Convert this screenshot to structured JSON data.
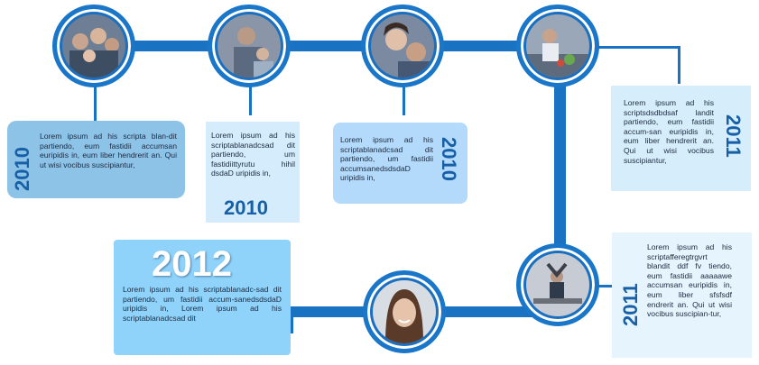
{
  "milestones": [
    {
      "photo": "family-group-photo",
      "year": "2010",
      "text": "Lorem ipsum ad his scripta blan-dit partiendo, eum fastidii accumsan euripidis in, eum liber hendrerit an. Qui ut wisi vocibus suscipiantur,"
    },
    {
      "photo": "woman-with-child-photo",
      "year": "2010",
      "text": "Lorem ipsum ad his scriptablanadcsad dit partiendo, um fastidiittyrutu hihil dsdaD uripidis in,"
    },
    {
      "photo": "smiling-couple-photo",
      "year": "2010",
      "text": "Lorem ipsum ad his scriptablanadcsad dit partiendo, um fastidii accumsanedsdsdaD uripidis in,"
    },
    {
      "photo": "kitchen-cooking-photo",
      "year": "2011",
      "text": "Lorem ipsum ad his scriptsdsdbdsaf landit partiendo, eum fastidii accum-san euripidis in, eum liber hendrerit an. Qui ut wisi vocibus suscipiantur,"
    },
    {
      "photo": "office-stretch-photo",
      "year": "2011",
      "text": "Lorem ipsum ad his scriptafferegtrgvrt blandit ddf fv tiendo, eum fastidii aaaaawe accumsan euripidis in, eum liber sfsfsdf endrerit an. Qui ut wisi vocibus suscipian-tur,"
    },
    {
      "photo": "smiling-woman-portrait-photo",
      "year": "2012",
      "text": "Lorem ipsum ad his scriptablanadc-sad dit partiendo, um fastidii accum-sanedsdsdaD uripidis in, Lorem ipsum ad his scriptablanadcsad dit"
    }
  ],
  "colors": {
    "track": "#1a73c2",
    "card_1": "#8ec3e8",
    "card_2": "#d4ecfb",
    "card_3": "#b3dafb",
    "card_4": "#d6edfc",
    "card_5": "#e6f4fd",
    "card_6": "#8fd3fb",
    "year_text": "#1760a8"
  }
}
